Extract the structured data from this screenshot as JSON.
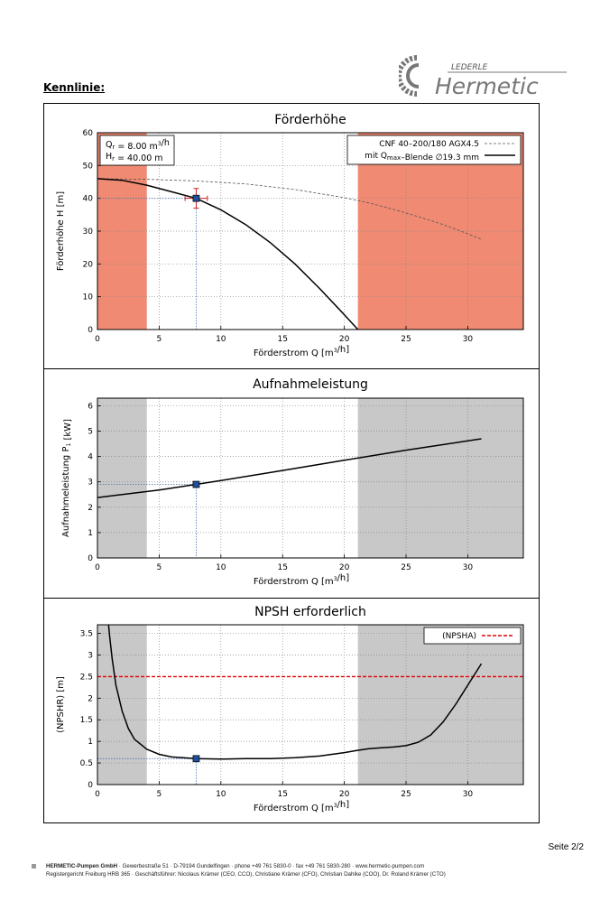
{
  "heading": "Kennlinie:",
  "logo": {
    "top_text": "LEDERLE",
    "main_text": "Hermetic"
  },
  "page_number": "Seite 2/2",
  "footer": {
    "company": "HERMETIC-Pumpen GmbH",
    "line1_rest": " · Gewerbestraße 51 · D-79194 Gundelfingen · phone +49 761 5830-0 · fax +49 761 5830-280 · www.hermetic-pumpen.com",
    "line2": "Registergericht Freiburg HRB 365 · Geschäftsführer: Nicolaus Krämer (CEO, CCO), Christiane Krämer (CFO), Christian Dahlke (COO), Dr. Roland Krämer (CTO)"
  },
  "colors": {
    "red_zone": "#f08a72",
    "grey_zone": "#c8c8c8",
    "curve": "#000000",
    "dashed": "#555555",
    "marker": "#1f4e9c",
    "npsha": "#e00000",
    "errorbar": "#d02020"
  },
  "chart_data": [
    {
      "type": "line",
      "title": "Förderhöhe",
      "xlabel": "Förderstrom Q [m³/h]",
      "ylabel": "Förderhöhe H [m]",
      "xlim": [
        0,
        34.5
      ],
      "ylim": [
        0,
        60
      ],
      "xticks": [
        0,
        5,
        10,
        15,
        20,
        25,
        30
      ],
      "yticks": [
        0,
        10,
        20,
        30,
        40,
        50,
        60
      ],
      "shaded_ranges": [
        [
          0,
          4
        ],
        [
          21.1,
          34.5
        ]
      ],
      "shade_color": "red",
      "operating_point": {
        "x": 8.0,
        "y": 40.0
      },
      "operating_error": {
        "x": [
          7.1,
          8.9
        ],
        "y": [
          37.0,
          43.0
        ]
      },
      "info_box": [
        "Q_r = 8.00 m³/h",
        "H_r = 40.00 m"
      ],
      "legend": [
        "CNF 40–200/180 AGX4.5",
        "mit Q_max–Blende ∅19.3 mm"
      ],
      "legend_position": "top-right",
      "series": [
        {
          "name": "CNF 40–200/180 AGX4.5",
          "style": "dashed",
          "x": [
            0,
            4,
            8,
            12,
            16,
            20,
            22,
            24,
            26,
            28,
            30,
            31.1
          ],
          "y": [
            46,
            45.8,
            45.3,
            44.4,
            42.7,
            40.2,
            38.6,
            36.6,
            34.4,
            32.0,
            29.2,
            27.5
          ]
        },
        {
          "name": "mit Q_max–Blende ∅19.3 mm",
          "style": "solid",
          "x": [
            0,
            2,
            4,
            6,
            8,
            10,
            12,
            14,
            16,
            18,
            20,
            21.1
          ],
          "y": [
            46,
            45.5,
            44.0,
            42.0,
            40.0,
            36.5,
            32.0,
            26.5,
            20.0,
            12.5,
            4.5,
            0
          ]
        }
      ]
    },
    {
      "type": "line",
      "title": "Aufnahmeleistung",
      "xlabel": "Förderstrom Q [m³/h]",
      "ylabel": "Aufnahmeleistung P₁ [kW]",
      "xlim": [
        0,
        34.5
      ],
      "ylim": [
        0,
        6.3
      ],
      "xticks": [
        0,
        5,
        10,
        15,
        20,
        25,
        30
      ],
      "yticks": [
        0,
        1,
        2,
        3,
        4,
        5,
        6
      ],
      "shaded_ranges": [
        [
          0,
          4
        ],
        [
          21.1,
          34.5
        ]
      ],
      "shade_color": "grey",
      "operating_point": {
        "x": 8.0,
        "y": 2.9
      },
      "series": [
        {
          "name": "P1",
          "style": "solid",
          "x": [
            0,
            5,
            8,
            10,
            15,
            20,
            25,
            31.1
          ],
          "y": [
            2.38,
            2.68,
            2.9,
            3.05,
            3.45,
            3.85,
            4.25,
            4.7
          ]
        }
      ]
    },
    {
      "type": "line",
      "title": "NPSH erforderlich",
      "xlabel": "Förderstrom Q [m³/h]",
      "ylabel": "(NPSHR) [m]",
      "xlim": [
        0,
        34.5
      ],
      "ylim": [
        0,
        3.7
      ],
      "xticks": [
        0,
        5,
        10,
        15,
        20,
        25,
        30
      ],
      "yticks": [
        0,
        0.5,
        1,
        1.5,
        2,
        2.5,
        3,
        3.5
      ],
      "shaded_ranges": [
        [
          0,
          4
        ],
        [
          21.1,
          34.5
        ]
      ],
      "shade_color": "grey",
      "operating_point": {
        "x": 8.0,
        "y": 0.6
      },
      "reference_line": {
        "name": "(NPSHA)",
        "y": 2.5
      },
      "legend": [
        "(NPSHA)"
      ],
      "legend_position": "top-right",
      "series": [
        {
          "name": "NPSHR",
          "style": "solid",
          "x": [
            0.9,
            1.0,
            1.2,
            1.5,
            2.0,
            2.5,
            3.0,
            4.0,
            5.0,
            6.0,
            8.0,
            10,
            12,
            14,
            16,
            18,
            20,
            21,
            22,
            23,
            24,
            25,
            26,
            27,
            28,
            29,
            30,
            31.1
          ],
          "y": [
            3.7,
            3.4,
            2.9,
            2.3,
            1.7,
            1.3,
            1.05,
            0.82,
            0.7,
            0.64,
            0.6,
            0.59,
            0.6,
            0.6,
            0.62,
            0.66,
            0.74,
            0.79,
            0.83,
            0.85,
            0.87,
            0.9,
            0.98,
            1.15,
            1.45,
            1.85,
            2.3,
            2.8
          ]
        }
      ]
    }
  ]
}
